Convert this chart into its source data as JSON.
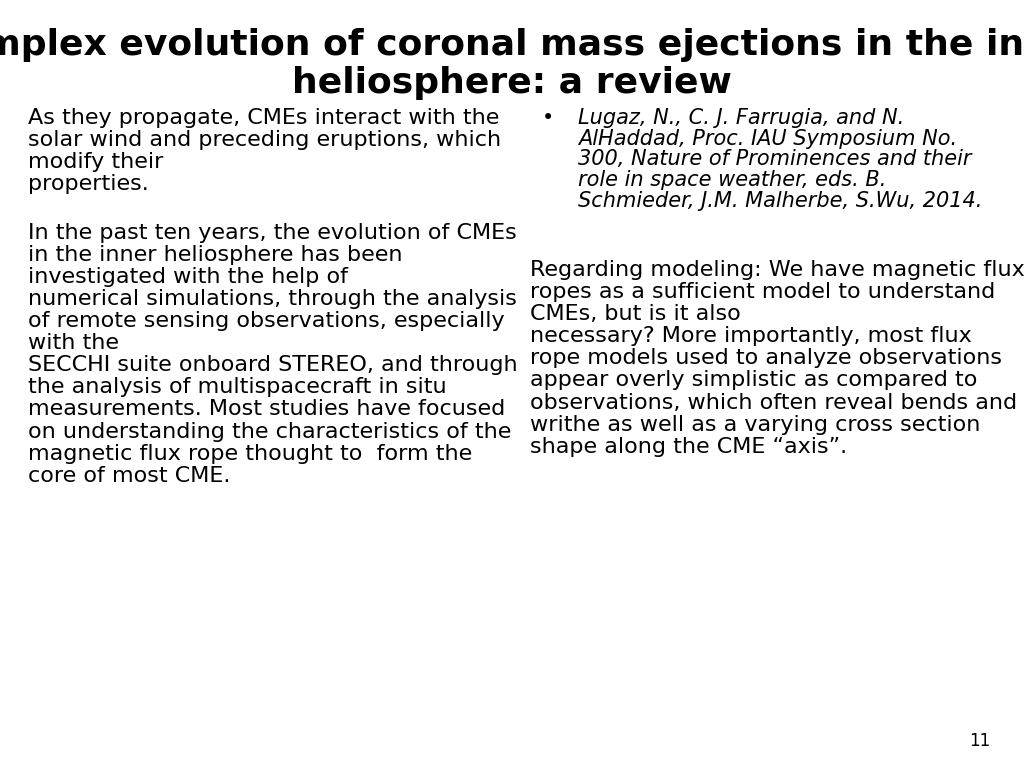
{
  "title_line1": "Complex evolution of coronal mass ejections in the inner",
  "title_line2": "heliosphere: a review",
  "title_fontsize": 26,
  "title_fontweight": "bold",
  "background_color": "#ffffff",
  "text_color": "#000000",
  "page_number": "11",
  "body_fontsize": 16,
  "bullet_fontsize": 15,
  "left_block1_lines": [
    "As they propagate, CMEs interact with the",
    "solar wind and preceding eruptions, which",
    "modify their",
    "properties."
  ],
  "left_block2_lines": [
    "In the past ten years, the evolution of CMEs",
    "in the inner heliosphere has been",
    "investigated with the help of",
    "numerical simulations, through the analysis",
    "of remote sensing observations, especially",
    "with the",
    "SECCHI suite onboard STEREO, and through",
    "the analysis of multispacecraft in situ",
    "measurements. Most studies have focused",
    "on understanding the characteristics of the",
    "magnetic flux rope thought to  form the",
    "core of most CME."
  ],
  "right_bullet_lines": [
    "Lugaz, N., C. J. Farrugia, and N.",
    "AlHaddad, Proc. IAU Symposium No.",
    "300, Nature of Prominences and their",
    "role in space weather, eds. B.",
    "Schmieder, J.M. Malherbe, S.Wu, 2014."
  ],
  "right_block2_lines": [
    "Regarding modeling: We have magnetic flux",
    "ropes as a sufficient model to understand",
    "CMEs, but is it also",
    "necessary? More importantly, most flux",
    "rope models used to analyze observations",
    "appear overly simplistic as compared to",
    "observations, which often reveal bends and",
    "writhe as well as a varying cross section",
    "shape along the CME “axis”."
  ]
}
